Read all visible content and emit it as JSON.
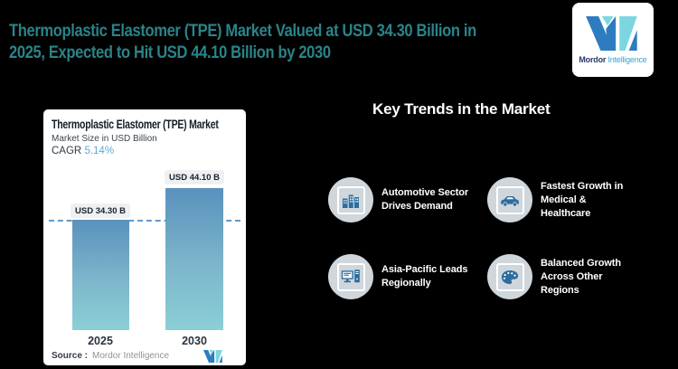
{
  "colors": {
    "background": "#000000",
    "title_teal": "#2a8489",
    "heading_white": "#ffffff",
    "logo_blue": "#2e7cc0",
    "logo_teal": "#7cd6e2",
    "icon_blue": "#2c6d9e",
    "circle_gray": "#cfd6dc",
    "cagr_blue": "#58aed6",
    "bar_gradient_top": "#5a91bd",
    "bar_gradient_bottom": "#8bd0d6",
    "dashed_line": "#5f9bcb"
  },
  "header": {
    "title_line1": "Thermoplastic Elastomer (TPE) Market Valued at USD 34.30 Billion in",
    "title_line2": "2025, Expected to Hit USD 44.10 Billion by 2030"
  },
  "brand": {
    "name_bold": "Mordor",
    "name_light": "Intelligence"
  },
  "chart_card": {
    "title": "Thermoplastic Elastomer (TPE) Market",
    "subtitle": "Market Size in USD Billion",
    "cagr_label": "CAGR",
    "cagr_value": "5.14%",
    "source_label": "Source :",
    "source_value": "Mordor Intelligence"
  },
  "chart_data": {
    "type": "bar",
    "title": "Thermoplastic Elastomer (TPE) Market",
    "ylabel": "Market Size in USD Billion",
    "categories": [
      "2025",
      "2030"
    ],
    "values": [
      34.3,
      44.1
    ],
    "labels": [
      "USD 34.30 B",
      "USD 44.10 B"
    ],
    "cagr_percent": 5.14,
    "dashed_line_value": 34.3,
    "grid": "off",
    "legend": "none"
  },
  "trends": {
    "heading": "Key Trends in the Market",
    "items": [
      {
        "icon": "buildings-icon",
        "lines": [
          "Automotive Sector",
          "Drives Demand"
        ]
      },
      {
        "icon": "car-icon",
        "lines": [
          "Fastest Growth in",
          "Medical &",
          "Healthcare"
        ]
      },
      {
        "icon": "computer-icon",
        "lines": [
          "Asia-Pacific Leads",
          "Regionally"
        ]
      },
      {
        "icon": "palette-icon",
        "lines": [
          "Balanced Growth",
          "Across Other",
          "Regions"
        ]
      }
    ]
  }
}
